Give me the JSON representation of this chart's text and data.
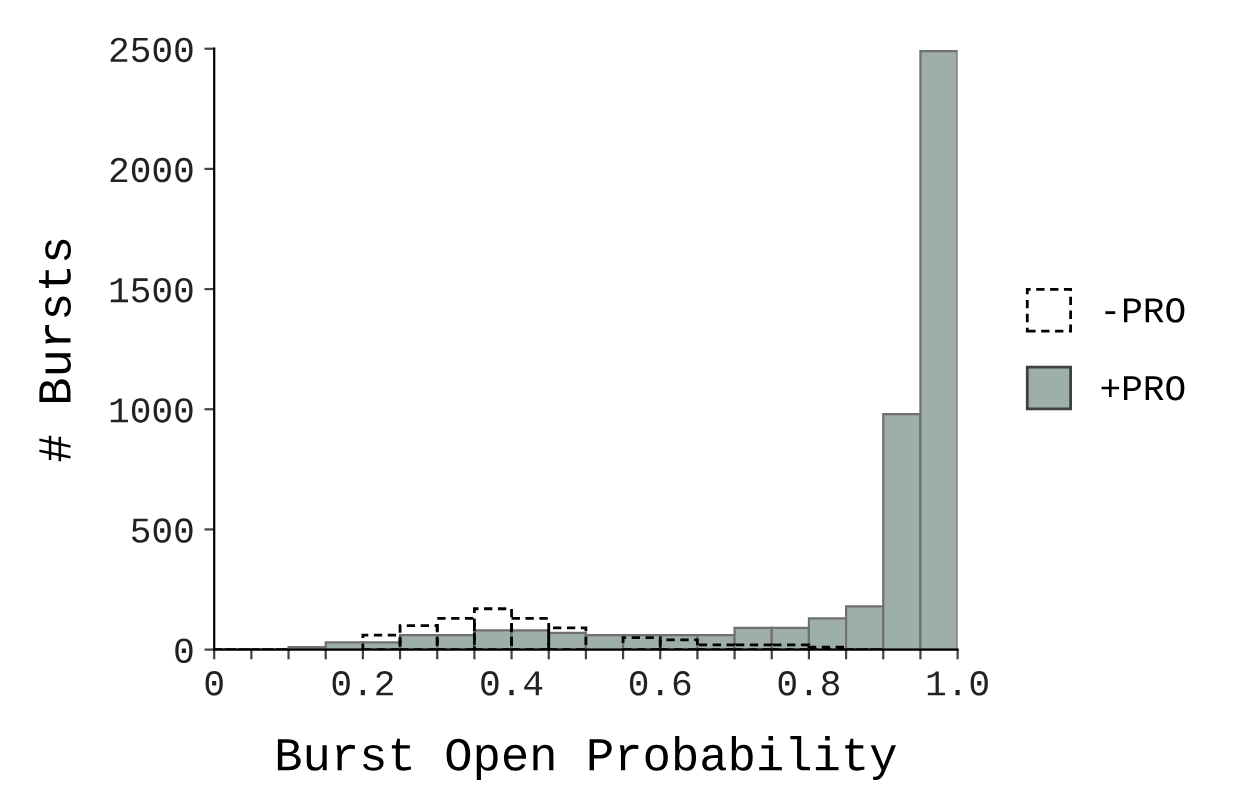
{
  "chart_data": {
    "type": "histogram",
    "xlabel": "Burst Open Probability",
    "ylabel": "# Bursts",
    "bins": [
      0,
      0.05,
      0.1,
      0.15,
      0.2,
      0.25,
      0.3,
      0.35,
      0.4,
      0.45,
      0.5,
      0.55,
      0.6,
      0.65,
      0.7,
      0.75,
      0.8,
      0.85,
      0.9,
      0.95,
      1.0
    ],
    "series": [
      {
        "name": "-PRO",
        "color": "#000000",
        "line_style": "dashed",
        "values": [
          0,
          0,
          null,
          null,
          60,
          100,
          130,
          170,
          130,
          90,
          null,
          50,
          40,
          20,
          20,
          20,
          10,
          0,
          null,
          null
        ]
      },
      {
        "name": "+PRO",
        "color": "#9eaeaa",
        "line_style": "solid",
        "values": [
          0,
          0,
          10,
          30,
          30,
          60,
          60,
          80,
          80,
          70,
          60,
          60,
          60,
          60,
          90,
          90,
          130,
          180,
          980,
          2490
        ]
      }
    ],
    "xlim": [
      0,
      1.0
    ],
    "ylim": [
      0,
      2500
    ],
    "xticks": [
      0,
      {
        "value": 0.05,
        "label": null
      },
      {
        "value": 0.1,
        "label": null
      },
      {
        "value": 0.15,
        "label": null
      },
      0.2,
      {
        "value": 0.25,
        "label": null
      },
      {
        "value": 0.3,
        "label": null
      },
      {
        "value": 0.35,
        "label": null
      },
      0.4,
      {
        "value": 0.45,
        "label": null
      },
      {
        "value": 0.5,
        "label": null
      },
      {
        "value": 0.55,
        "label": null
      },
      0.6,
      {
        "value": 0.65,
        "label": null
      },
      {
        "value": 0.7,
        "label": null
      },
      {
        "value": 0.75,
        "label": null
      },
      0.8,
      {
        "value": 0.85,
        "label": null
      },
      {
        "value": 0.9,
        "label": null
      },
      {
        "value": 0.95,
        "label": null
      },
      {
        "value": 1.0,
        "label": "1.0"
      }
    ],
    "yticks": [
      0,
      500,
      1000,
      1500,
      2000,
      2500
    ],
    "grid": false,
    "legend": "right"
  }
}
